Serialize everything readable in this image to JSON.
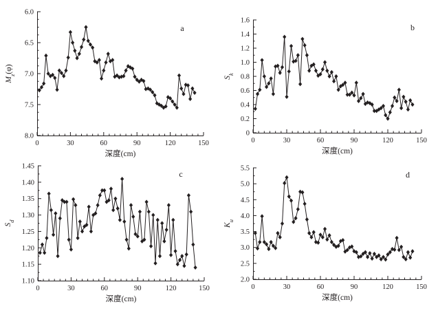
{
  "figure": {
    "background": "#ffffff",
    "ink_color": "#231f20",
    "marker_shape": "filled-diamond",
    "x_axis_label": "深度(cm)"
  },
  "chart_data": {
    "type": "line",
    "x_shared": {
      "label": "深度(cm)",
      "values": [
        2,
        4,
        6,
        8,
        10,
        12,
        14,
        16,
        18,
        20,
        22,
        24,
        26,
        28,
        30,
        32,
        34,
        36,
        38,
        40,
        42,
        44,
        46,
        48,
        50,
        52,
        54,
        56,
        58,
        60,
        62,
        64,
        66,
        68,
        70,
        72,
        74,
        76,
        78,
        80,
        82,
        84,
        86,
        88,
        90,
        92,
        94,
        96,
        98,
        100,
        102,
        104,
        106,
        108,
        110,
        112,
        114,
        116,
        118,
        120,
        122,
        124,
        126,
        128,
        130,
        132,
        134,
        136,
        138,
        140,
        142
      ],
      "xlim": [
        0,
        150
      ],
      "xticks": [
        [
          0,
          "0"
        ],
        [
          30,
          "30"
        ],
        [
          60,
          "60"
        ],
        [
          90,
          "90"
        ],
        [
          120,
          "120"
        ],
        [
          150,
          "150"
        ]
      ],
      "x_minor_step": 5
    },
    "panels": [
      {
        "panel_letter": "a",
        "ylabel_text": "Mz(φ)",
        "ylabel_parts": [
          {
            "t": "M",
            "i": 1
          },
          {
            "t": "z",
            "sub": 1
          },
          {
            "t": "(φ)"
          }
        ],
        "xlabel": "深度(cm)",
        "value_at_top": 6.0,
        "value_at_bottom": 8.0,
        "axis_direction": "inverted",
        "yticks": [
          [
            6.0,
            "6.0"
          ],
          [
            6.5,
            "6.5"
          ],
          [
            7.0,
            "7.0"
          ],
          [
            7.5,
            "7.5"
          ],
          [
            8.0,
            "8.0"
          ]
        ],
        "y_minor_step": 0.125,
        "values": [
          7.27,
          7.22,
          7.16,
          6.71,
          7.0,
          7.04,
          7.02,
          7.07,
          7.26,
          6.95,
          6.99,
          7.04,
          6.95,
          6.74,
          6.33,
          6.5,
          6.63,
          6.75,
          6.68,
          6.57,
          6.45,
          6.25,
          6.47,
          6.53,
          6.58,
          6.8,
          6.82,
          6.78,
          7.08,
          6.95,
          6.82,
          6.68,
          6.8,
          6.78,
          7.05,
          7.03,
          7.06,
          7.05,
          7.04,
          6.95,
          6.88,
          6.9,
          6.92,
          7.05,
          7.1,
          7.13,
          7.1,
          7.12,
          7.25,
          7.24,
          7.26,
          7.3,
          7.35,
          7.48,
          7.5,
          7.52,
          7.55,
          7.53,
          7.38,
          7.4,
          7.45,
          7.5,
          7.55,
          7.03,
          7.24,
          7.33,
          7.18,
          7.19,
          7.41,
          7.24,
          7.31
        ]
      },
      {
        "panel_letter": "b",
        "ylabel_text": "Sk",
        "ylabel_parts": [
          {
            "t": "S",
            "i": 1
          },
          {
            "t": "k",
            "sub": 1
          }
        ],
        "xlabel": "深度(cm)",
        "value_at_top": 1.6,
        "value_at_bottom": 0,
        "axis_direction": "normal",
        "yticks": [
          [
            0,
            "0"
          ],
          [
            0.2,
            "0.2"
          ],
          [
            0.4,
            "0.4"
          ],
          [
            0.6,
            "0.6"
          ],
          [
            0.8,
            "0.8"
          ],
          [
            1.0,
            "1.0"
          ],
          [
            1.2,
            "1.2"
          ],
          [
            1.4,
            "1.4"
          ],
          [
            1.6,
            "1.6"
          ]
        ],
        "y_minor_step": 0.1,
        "values": [
          0.34,
          0.55,
          0.61,
          1.03,
          0.8,
          0.65,
          0.7,
          0.77,
          0.55,
          0.94,
          0.95,
          0.85,
          0.93,
          1.36,
          0.51,
          0.87,
          1.23,
          1.01,
          1.02,
          1.1,
          0.69,
          1.33,
          1.24,
          1.1,
          0.88,
          0.95,
          0.97,
          0.88,
          0.81,
          0.83,
          0.9,
          1.0,
          0.88,
          0.8,
          0.86,
          0.73,
          0.8,
          0.61,
          0.66,
          0.68,
          0.71,
          0.54,
          0.54,
          0.57,
          0.53,
          0.71,
          0.45,
          0.49,
          0.55,
          0.41,
          0.43,
          0.42,
          0.4,
          0.31,
          0.31,
          0.33,
          0.35,
          0.38,
          0.25,
          0.2,
          0.29,
          0.38,
          0.5,
          0.45,
          0.61,
          0.35,
          0.51,
          0.44,
          0.33,
          0.46,
          0.4
        ]
      },
      {
        "panel_letter": "c",
        "ylabel_text": "Sd",
        "ylabel_parts": [
          {
            "t": "S",
            "i": 1
          },
          {
            "t": "d",
            "sub": 1
          }
        ],
        "xlabel": "深度(cm)",
        "value_at_top": 1.45,
        "value_at_bottom": 1.1,
        "axis_direction": "normal",
        "yticks": [
          [
            1.1,
            "1.10"
          ],
          [
            1.15,
            "1.15"
          ],
          [
            1.2,
            "1.20"
          ],
          [
            1.25,
            "1.25"
          ],
          [
            1.3,
            "1.30"
          ],
          [
            1.35,
            "1.35"
          ],
          [
            1.4,
            "1.40"
          ],
          [
            1.45,
            "1.45"
          ]
        ],
        "y_minor_step": 0.025,
        "values": [
          1.185,
          1.21,
          1.185,
          1.23,
          1.365,
          1.315,
          1.24,
          1.305,
          1.175,
          1.29,
          1.345,
          1.34,
          1.34,
          1.225,
          1.195,
          1.348,
          1.33,
          1.23,
          1.28,
          1.25,
          1.265,
          1.27,
          1.325,
          1.25,
          1.3,
          1.305,
          1.33,
          1.36,
          1.375,
          1.375,
          1.34,
          1.345,
          1.38,
          1.315,
          1.35,
          1.32,
          1.285,
          1.41,
          1.28,
          1.225,
          1.198,
          1.33,
          1.295,
          1.242,
          1.235,
          1.31,
          1.22,
          1.225,
          1.34,
          1.31,
          1.205,
          1.3,
          1.153,
          1.285,
          1.175,
          1.275,
          1.22,
          1.255,
          1.33,
          1.178,
          1.285,
          1.19,
          1.15,
          1.163,
          1.175,
          1.145,
          1.18,
          1.36,
          1.31,
          1.21,
          1.14
        ]
      },
      {
        "panel_letter": "d",
        "ylabel_text": "Ku",
        "ylabel_parts": [
          {
            "t": "K",
            "i": 1
          },
          {
            "t": "u",
            "sub": 1
          }
        ],
        "xlabel": "深度(cm)",
        "value_at_top": 5.5,
        "value_at_bottom": 2.0,
        "axis_direction": "normal",
        "yticks": [
          [
            2.0,
            "2.0"
          ],
          [
            2.5,
            "2.5"
          ],
          [
            3.0,
            "3.0"
          ],
          [
            3.5,
            "3.5"
          ],
          [
            4.0,
            "4.0"
          ],
          [
            4.5,
            "4.5"
          ],
          [
            5.0,
            "5.0"
          ],
          [
            5.5,
            "5.5"
          ]
        ],
        "y_minor_step": 0.25,
        "values": [
          3.45,
          2.97,
          3.17,
          3.98,
          3.17,
          3.1,
          2.95,
          3.17,
          3.05,
          2.98,
          3.45,
          3.32,
          3.75,
          5.02,
          5.2,
          4.6,
          4.47,
          3.8,
          3.92,
          4.2,
          4.75,
          4.73,
          4.37,
          3.88,
          3.45,
          3.32,
          3.48,
          3.17,
          3.15,
          3.4,
          3.32,
          3.58,
          3.25,
          3.38,
          3.17,
          3.08,
          3.02,
          3.05,
          3.2,
          3.23,
          2.87,
          2.92,
          3.0,
          3.03,
          2.88,
          2.85,
          2.7,
          2.72,
          2.8,
          2.85,
          2.7,
          2.82,
          2.65,
          2.8,
          2.7,
          2.75,
          2.63,
          2.7,
          2.62,
          2.78,
          2.85,
          2.95,
          2.93,
          3.3,
          2.92,
          3.02,
          2.7,
          2.63,
          2.85,
          2.68,
          2.88
        ]
      }
    ]
  }
}
